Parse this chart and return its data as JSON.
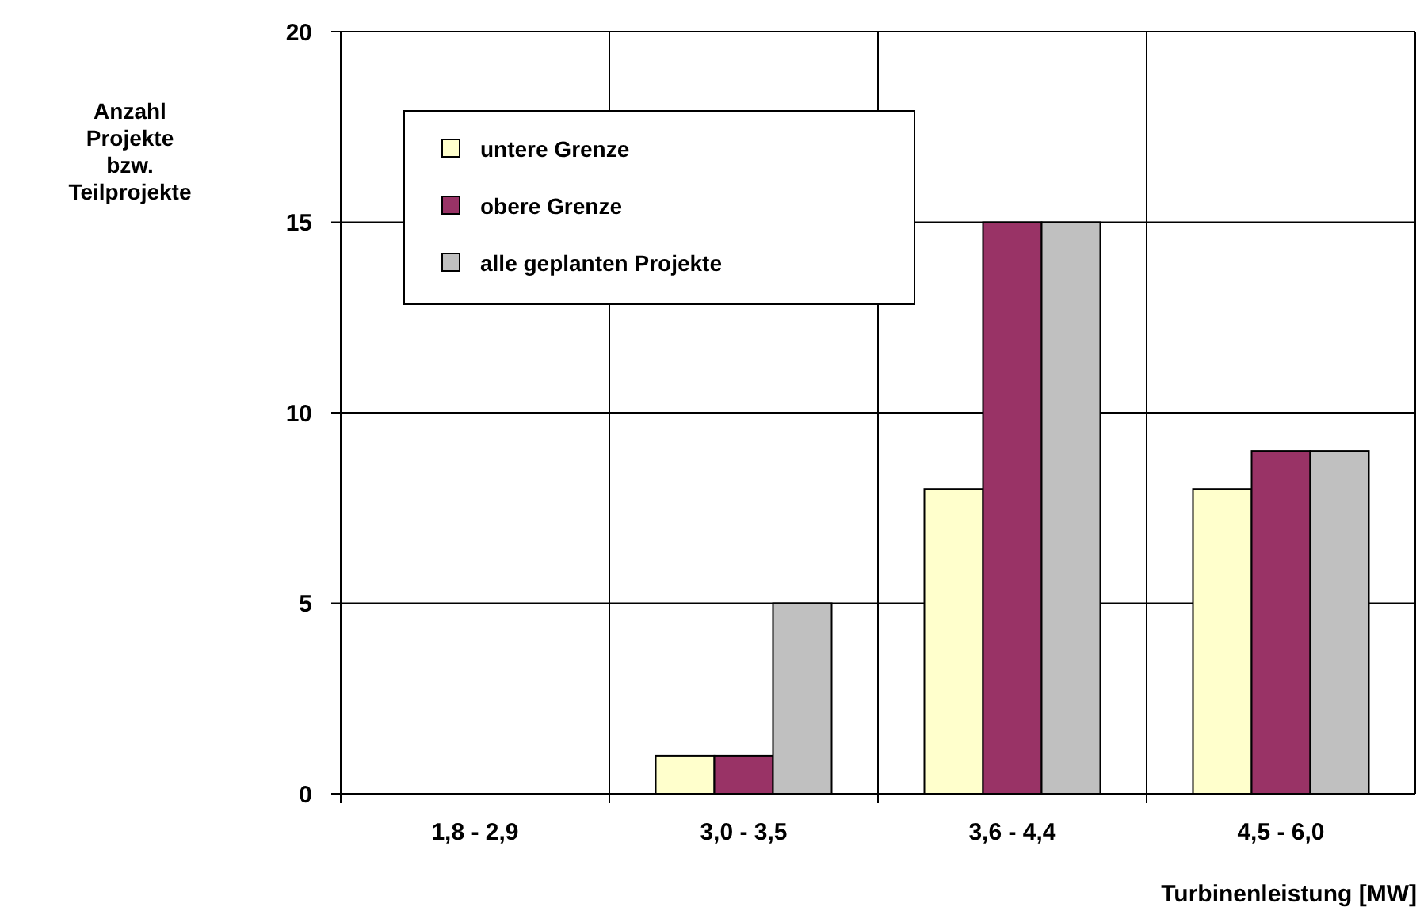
{
  "chart_data": {
    "type": "bar",
    "xlabel": "Turbinenleistung [MW]",
    "ylabel": "Anzahl Projekte bzw. Teilprojekte",
    "categories": [
      "1,8 - 2,9",
      "3,0 - 3,5",
      "3,6 - 4,4",
      "4,5 - 6,0"
    ],
    "series": [
      {
        "name": "untere Grenze",
        "color": "#ffffcc",
        "values": [
          0,
          1,
          8,
          8
        ]
      },
      {
        "name": "obere Grenze",
        "color": "#993366",
        "values": [
          0,
          1,
          15,
          9
        ]
      },
      {
        "name": "alle geplanten Projekte",
        "color": "#c0c0c0",
        "values": [
          0,
          5,
          15,
          9
        ]
      }
    ],
    "ylim": [
      0,
      20
    ],
    "yticks": [
      0,
      5,
      10,
      15,
      20
    ],
    "grid": true,
    "legend": "top left"
  }
}
